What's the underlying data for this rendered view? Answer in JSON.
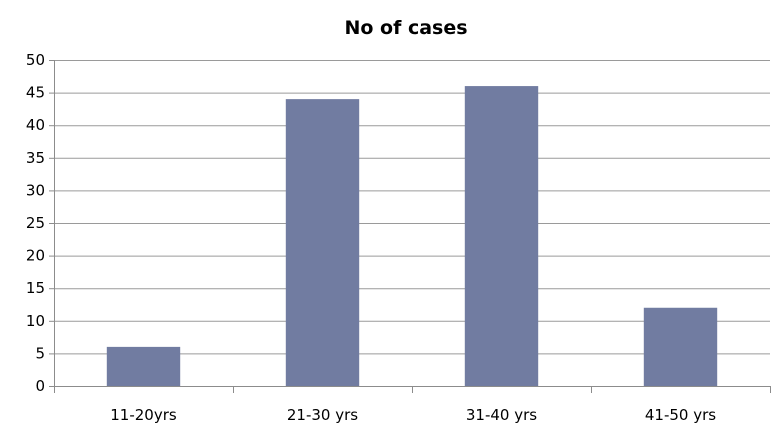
{
  "chart_data": {
    "type": "bar",
    "title": "No of cases",
    "xlabel": "",
    "ylabel": "",
    "categories": [
      "11-20yrs",
      "21-30 yrs",
      "31-40 yrs",
      "41-50 yrs"
    ],
    "values": [
      6,
      44,
      46,
      12
    ],
    "ylim": [
      0,
      50
    ],
    "yticks": [
      "0",
      "5",
      "10",
      "15",
      "20",
      "25",
      "30",
      "35",
      "40",
      "45",
      "50"
    ],
    "grid": true,
    "legend": "none",
    "bar_color": "#717ca1"
  }
}
